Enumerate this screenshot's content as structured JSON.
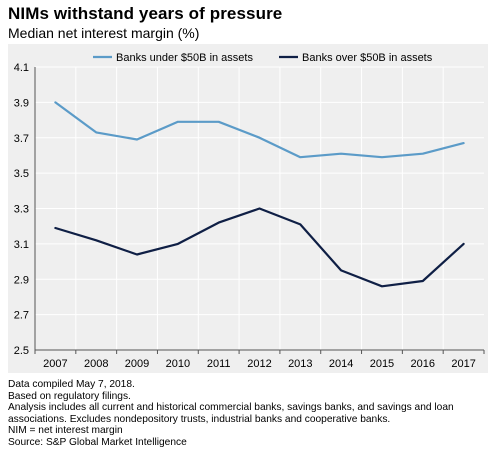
{
  "header": {
    "title": "NIMs withstand years of pressure",
    "subtitle": "Median net interest margin (%)"
  },
  "chart_data": {
    "type": "line",
    "title": "NIMs withstand years of pressure",
    "subtitle": "Median net interest margin (%)",
    "categories": [
      "2007",
      "2008",
      "2009",
      "2010",
      "2011",
      "2012",
      "2013",
      "2014",
      "2015",
      "2016",
      "2017"
    ],
    "series": [
      {
        "name": "Banks under $50B in assets",
        "color": "#5b9bc8",
        "values": [
          3.9,
          3.73,
          3.69,
          3.79,
          3.79,
          3.7,
          3.59,
          3.61,
          3.59,
          3.61,
          3.67
        ]
      },
      {
        "name": "Banks over $50B in assets",
        "color": "#0f1f45",
        "values": [
          3.19,
          3.12,
          3.04,
          3.1,
          3.22,
          3.3,
          3.21,
          2.95,
          2.86,
          2.89,
          3.1
        ]
      }
    ],
    "yticks": [
      "2.5",
      "2.7",
      "2.9",
      "3.1",
      "3.3",
      "3.5",
      "3.7",
      "3.9",
      "4.1"
    ],
    "ylim": [
      2.5,
      4.1
    ],
    "grid": true,
    "legend_position": "top"
  },
  "footnotes": [
    "Data compiled May 7, 2018.",
    "Based on regulatory filings.",
    "Analysis includes all current and historical commercial banks, savings banks, and savings and loan",
    "associations. Excludes nondepository trusts, industrial banks and cooperative banks.",
    "NIM = net interest margin",
    "Source: S&P Global Market Intelligence"
  ]
}
